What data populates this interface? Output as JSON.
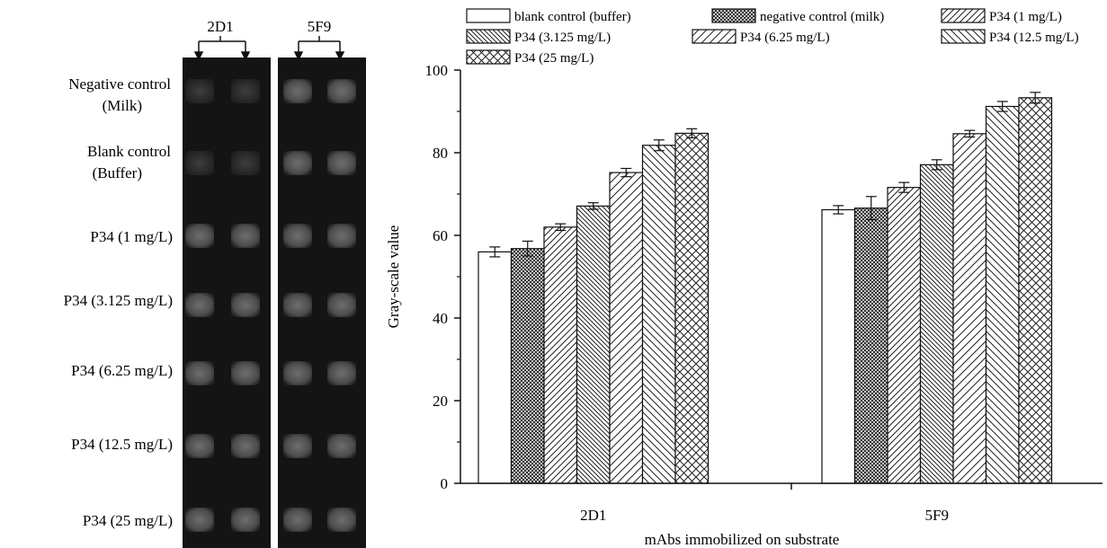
{
  "blot": {
    "columns": [
      "2D1",
      "5F9"
    ],
    "rows": [
      "Negative control",
      "(Milk)",
      "Blank control",
      "(Buffer)",
      "P34 (1 mg/L)",
      "P34 (3.125 mg/L)",
      "P34 (6.25 mg/L)",
      "P34 (12.5 mg/L)",
      "P34 (25 mg/L)"
    ]
  },
  "chart_data": {
    "type": "bar",
    "title": "",
    "xlabel": "mAbs immobilized on substrate",
    "ylabel": "Gray-scale value",
    "ylim": [
      0,
      100
    ],
    "yticks": [
      0,
      20,
      40,
      60,
      80,
      100
    ],
    "categories": [
      "2D1",
      "5F9"
    ],
    "legend_position": "top",
    "series": [
      {
        "name": "blank control (buffer)",
        "pattern": "none",
        "values": [
          56.0,
          66.2
        ],
        "errors": [
          1.2,
          1.0
        ]
      },
      {
        "name": "negative control (milk)",
        "pattern": "crosshatch-dense",
        "values": [
          56.8,
          66.6
        ],
        "errors": [
          1.8,
          2.8
        ]
      },
      {
        "name": "P34 (1 mg/L)",
        "pattern": "diag-forward",
        "values": [
          62.0,
          71.6
        ],
        "errors": [
          0.8,
          1.2
        ]
      },
      {
        "name": "P34 (3.125 mg/L)",
        "pattern": "diag-back",
        "values": [
          67.1,
          77.1
        ],
        "errors": [
          0.8,
          1.2
        ]
      },
      {
        "name": "P34 (6.25 mg/L)",
        "pattern": "diag-forward-wide",
        "values": [
          75.2,
          84.6
        ],
        "errors": [
          1.0,
          0.8
        ]
      },
      {
        "name": "P34 (12.5 mg/L)",
        "pattern": "diag-back-wide",
        "values": [
          81.8,
          91.2
        ],
        "errors": [
          1.3,
          1.2
        ]
      },
      {
        "name": "P34 (25 mg/L)",
        "pattern": "crosshatch-open",
        "values": [
          84.7,
          93.3
        ],
        "errors": [
          1.1,
          1.3
        ]
      }
    ]
  }
}
